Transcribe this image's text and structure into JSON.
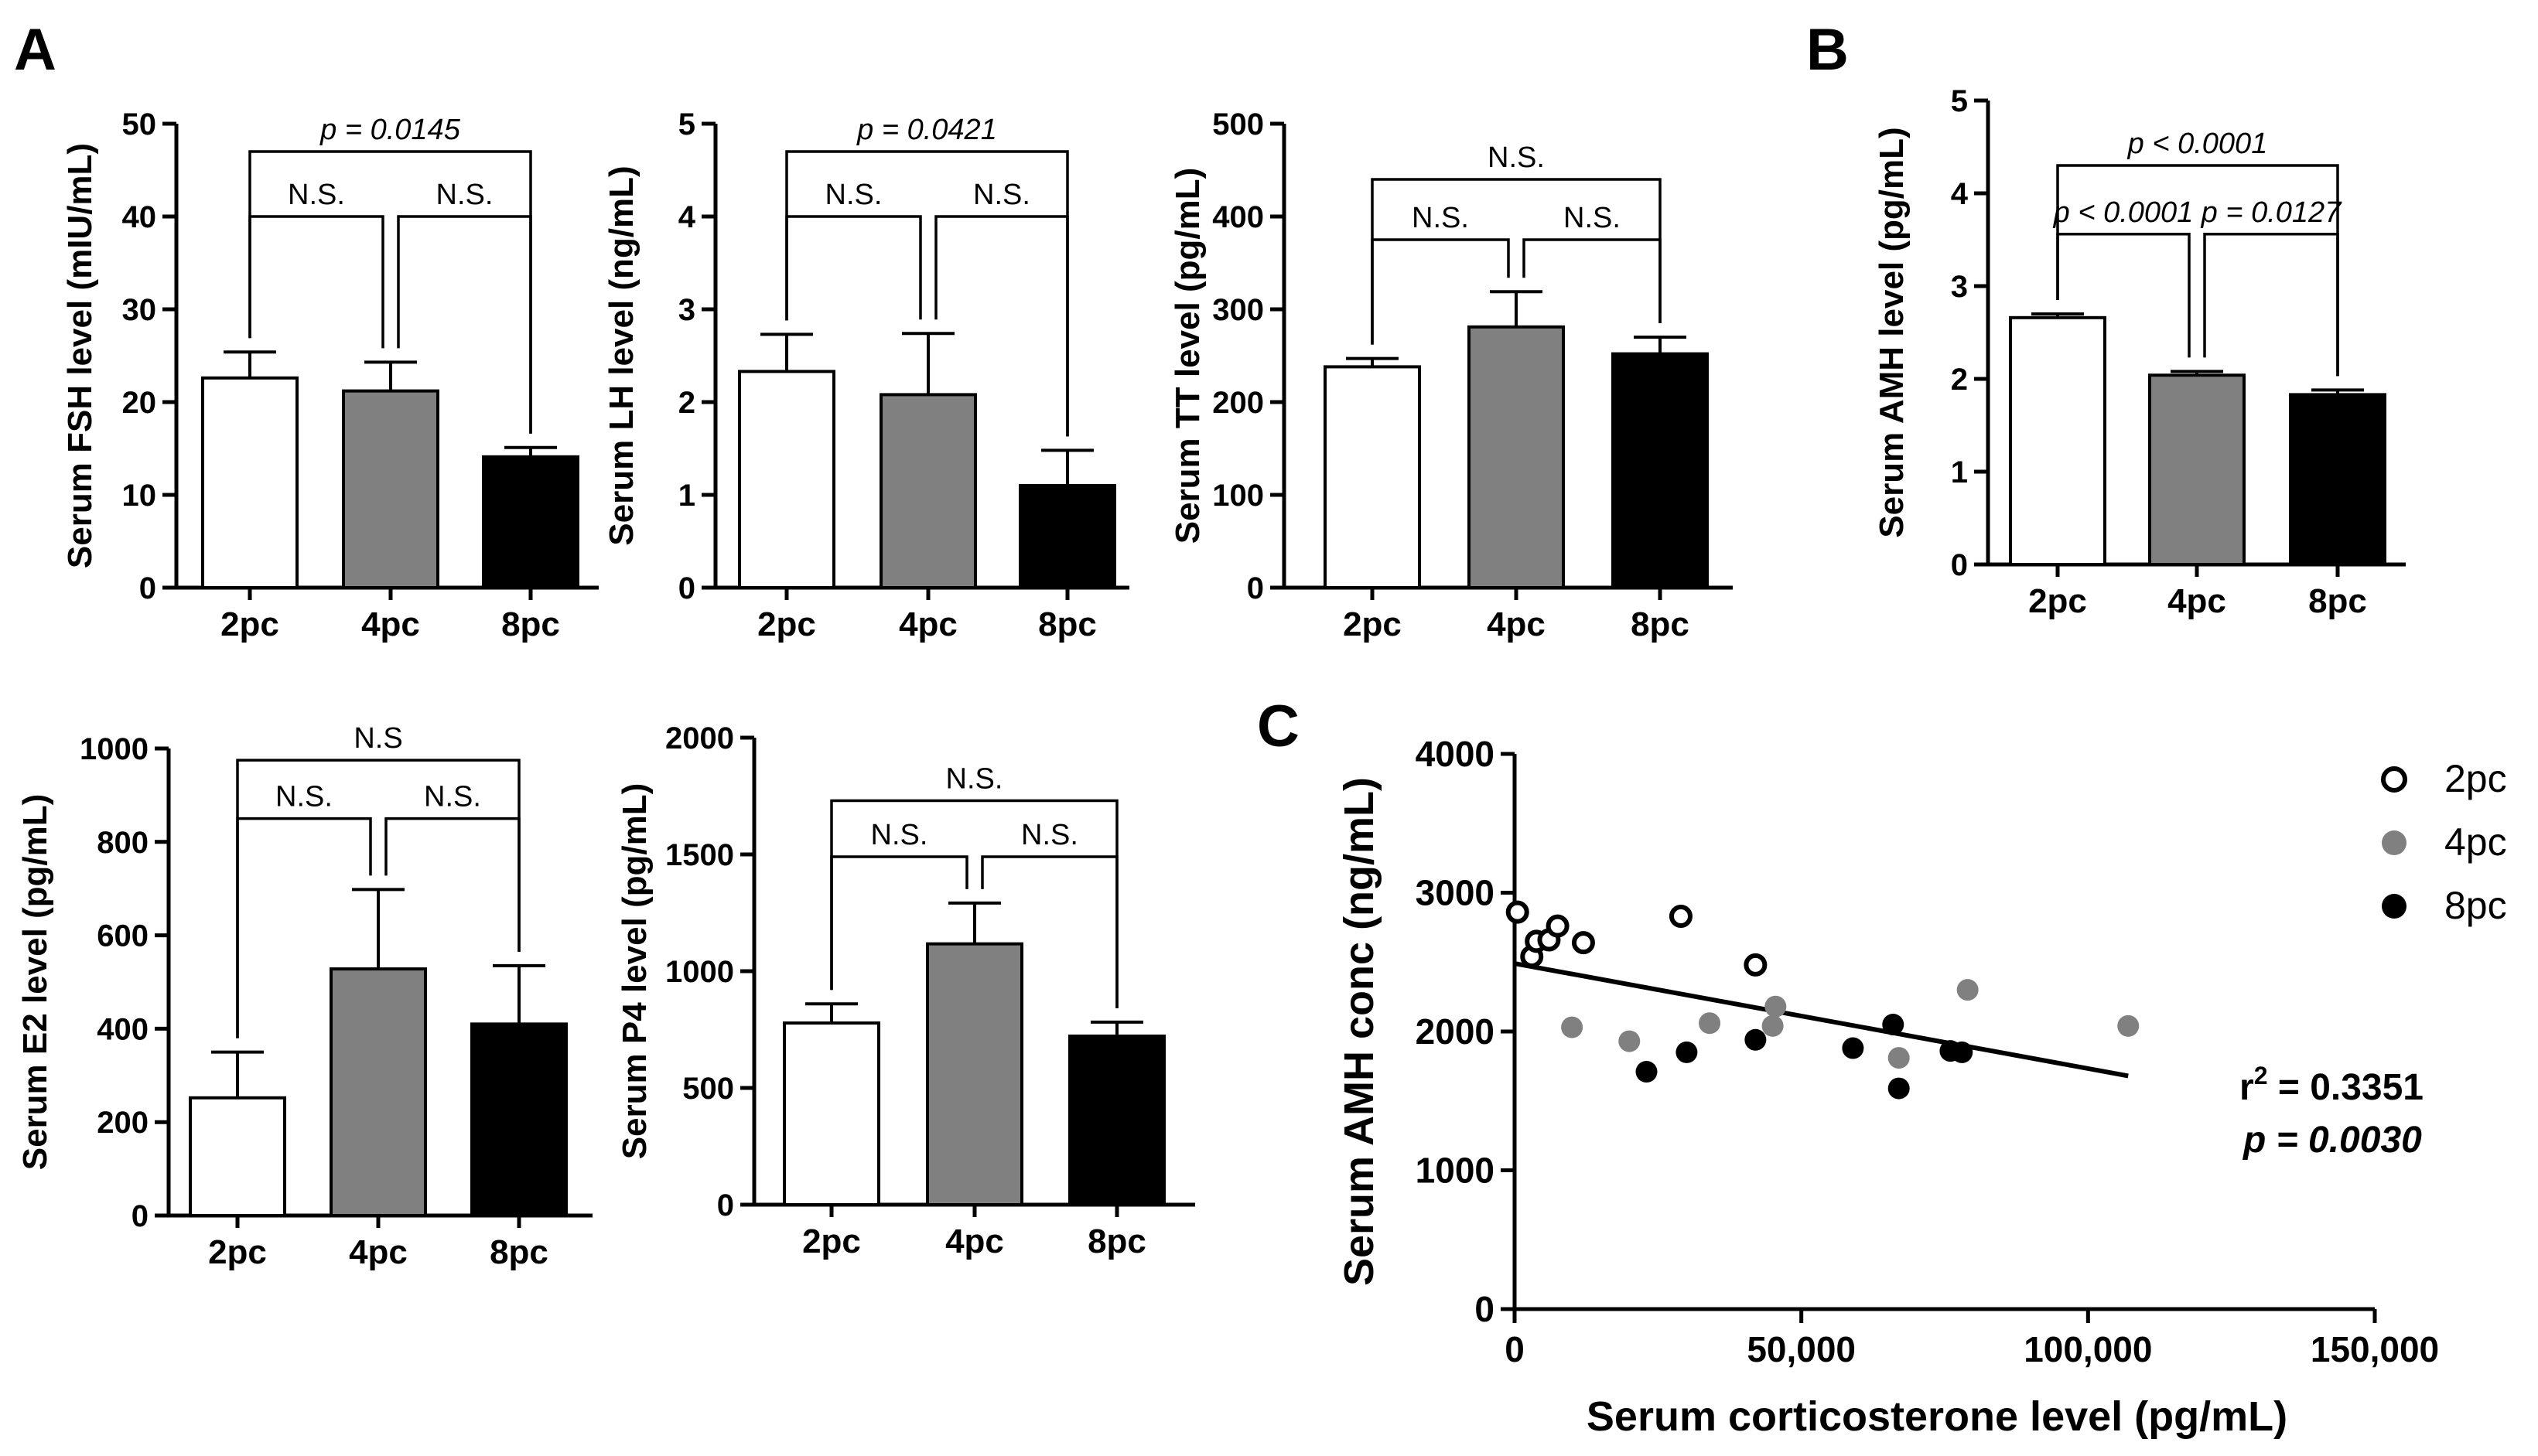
{
  "panel_labels": {
    "a": "A",
    "b": "B",
    "c": "C"
  },
  "colors": {
    "2pc": "#ffffff",
    "4pc": "#808080",
    "8pc": "#000000"
  },
  "chart_data": [
    {
      "id": "fsh",
      "type": "bar",
      "categories": [
        "2pc",
        "4pc",
        "8pc"
      ],
      "values": [
        22.6,
        21.2,
        14.1
      ],
      "errors": [
        2.8,
        3.1,
        1.0
      ],
      "ylabel": "Serum FSH level (mIU/mL)",
      "ylim": [
        0,
        50
      ],
      "yticks": [
        0,
        10,
        20,
        30,
        40,
        50
      ],
      "ytick_labels": [
        "0",
        "10",
        "20",
        "30",
        "40",
        "50"
      ],
      "annotations": [
        {
          "text": "N.S.",
          "from": 0,
          "to": 1,
          "level": 40,
          "italic": false
        },
        {
          "text": "N.S.",
          "from": 1,
          "to": 2,
          "level": 40,
          "italic": false
        },
        {
          "text": "p = 0.0145",
          "from": 0,
          "to": 2,
          "level": 47,
          "italic": true
        }
      ]
    },
    {
      "id": "lh",
      "type": "bar",
      "categories": [
        "2pc",
        "4pc",
        "8pc"
      ],
      "values": [
        2.33,
        2.08,
        1.1
      ],
      "errors": [
        0.4,
        0.66,
        0.38
      ],
      "ylabel": "Serum LH level (ng/mL)",
      "ylim": [
        0,
        5
      ],
      "yticks": [
        0,
        1,
        2,
        3,
        4,
        5
      ],
      "ytick_labels": [
        "0",
        "1",
        "2",
        "3",
        "4",
        "5"
      ],
      "annotations": [
        {
          "text": "N.S.",
          "from": 0,
          "to": 1,
          "level": 4.0,
          "italic": false
        },
        {
          "text": "N.S.",
          "from": 1,
          "to": 2,
          "level": 4.0,
          "italic": false
        },
        {
          "text": "p = 0.0421",
          "from": 0,
          "to": 2,
          "level": 4.7,
          "italic": true
        }
      ]
    },
    {
      "id": "tt",
      "type": "bar",
      "categories": [
        "2pc",
        "4pc",
        "8pc"
      ],
      "values": [
        238,
        281,
        252
      ],
      "errors": [
        9,
        38,
        18
      ],
      "ylabel": "Serum TT level (pg/mL)",
      "ylim": [
        0,
        500
      ],
      "yticks": [
        0,
        100,
        200,
        300,
        400,
        500
      ],
      "ytick_labels": [
        "0",
        "100",
        "200",
        "300",
        "400",
        "500"
      ],
      "annotations": [
        {
          "text": "N.S.",
          "from": 0,
          "to": 1,
          "level": 375,
          "italic": false
        },
        {
          "text": "N.S.",
          "from": 1,
          "to": 2,
          "level": 375,
          "italic": false
        },
        {
          "text": "N.S.",
          "from": 0,
          "to": 2,
          "level": 440,
          "italic": false
        }
      ]
    },
    {
      "id": "amh-b",
      "type": "bar",
      "categories": [
        "2pc",
        "4pc",
        "8pc"
      ],
      "values": [
        2.66,
        2.04,
        1.83
      ],
      "errors": [
        0.04,
        0.04,
        0.05
      ],
      "ylabel": "Serum AMH level (pg/mL)",
      "ylim": [
        0,
        5
      ],
      "yticks": [
        0,
        1,
        2,
        3,
        4,
        5
      ],
      "ytick_labels": [
        "0",
        "1",
        "2",
        "3",
        "4",
        "5"
      ],
      "annotations": [
        {
          "text": "p < 0.0001",
          "from": 0,
          "to": 1,
          "level": 3.56,
          "italic": true
        },
        {
          "text": "p = 0.0127",
          "from": 1,
          "to": 2,
          "level": 3.56,
          "italic": true
        },
        {
          "text": "p < 0.0001",
          "from": 0,
          "to": 2,
          "level": 4.3,
          "italic": true
        }
      ]
    },
    {
      "id": "e2",
      "type": "bar",
      "categories": [
        "2pc",
        "4pc",
        "8pc"
      ],
      "values": [
        252,
        528,
        410
      ],
      "errors": [
        98,
        170,
        125
      ],
      "ylabel": "Serum E2 level (pg/mL)",
      "ylim": [
        0,
        1000
      ],
      "yticks": [
        0,
        200,
        400,
        600,
        800,
        1000
      ],
      "ytick_labels": [
        "0",
        "200",
        "400",
        "600",
        "800",
        "1000"
      ],
      "annotations": [
        {
          "text": "N.S.",
          "from": 0,
          "to": 1,
          "level": 850,
          "italic": false
        },
        {
          "text": "N.S.",
          "from": 1,
          "to": 2,
          "level": 850,
          "italic": false
        },
        {
          "text": "N.S",
          "from": 0,
          "to": 2,
          "level": 975,
          "italic": false
        }
      ]
    },
    {
      "id": "p4",
      "type": "bar",
      "categories": [
        "2pc",
        "4pc",
        "8pc"
      ],
      "values": [
        778,
        1117,
        722
      ],
      "errors": [
        82,
        175,
        60
      ],
      "ylabel": "Serum P4 level (pg/mL)",
      "ylim": [
        0,
        2000
      ],
      "yticks": [
        0,
        500,
        1000,
        1500,
        2000
      ],
      "ytick_labels": [
        "0",
        "500",
        "1000",
        "1500",
        "2000"
      ],
      "annotations": [
        {
          "text": "N.S.",
          "from": 0,
          "to": 1,
          "level": 1490,
          "italic": false
        },
        {
          "text": "N.S.",
          "from": 1,
          "to": 2,
          "level": 1490,
          "italic": false
        },
        {
          "text": "N.S.",
          "from": 0,
          "to": 2,
          "level": 1730,
          "italic": false
        }
      ]
    },
    {
      "id": "scatter",
      "type": "scatter",
      "xlabel": "Serum corticosterone level (pg/mL)",
      "ylabel": "Serum AMH conc (ng/mL)",
      "xlim": [
        0,
        150000
      ],
      "ylim": [
        0,
        4000
      ],
      "xticks": [
        0,
        50000,
        100000,
        150000
      ],
      "xtick_labels": [
        "0",
        "50,000",
        "100,000",
        "150,000"
      ],
      "yticks": [
        0,
        1000,
        2000,
        3000,
        4000
      ],
      "ytick_labels": [
        "0",
        "1000",
        "2000",
        "3000",
        "4000"
      ],
      "series": [
        {
          "name": "2pc",
          "x": [
            500,
            3000,
            3800,
            6000,
            7500,
            12000,
            29000,
            42000
          ],
          "y": [
            2860,
            2540,
            2650,
            2660,
            2760,
            2640,
            2830,
            2480
          ]
        },
        {
          "name": "4pc",
          "x": [
            10000,
            20000,
            34000,
            45000,
            45500,
            67000,
            79000,
            107000
          ],
          "y": [
            2030,
            1930,
            2060,
            2040,
            2180,
            1810,
            2300,
            2040
          ]
        },
        {
          "name": "8pc",
          "x": [
            23000,
            30000,
            42000,
            59000,
            66000,
            67000,
            76000,
            78000
          ],
          "y": [
            1710,
            1850,
            1940,
            1880,
            2050,
            1590,
            1860,
            1850
          ]
        }
      ],
      "regression": {
        "x": [
          0,
          107000
        ],
        "y": [
          2490,
          1680
        ]
      },
      "stats": {
        "r2_prefix": "r",
        "r2_sup": "2",
        "r2_value": " = 0.3351",
        "p_text": "p = 0.0030"
      }
    }
  ]
}
